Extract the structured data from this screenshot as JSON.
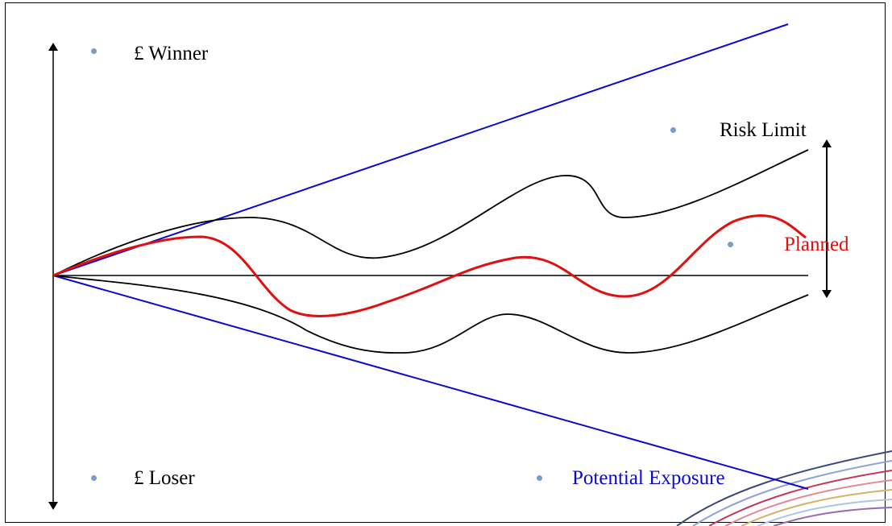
{
  "labels": {
    "winner": "£ Winner",
    "loser": "£ Loser",
    "risk_limit": "Risk Limit",
    "planned": "Planned",
    "potential_exposure": "Potential Exposure"
  },
  "colors": {
    "exposure": "#0a0ad0",
    "planned": "#e01010",
    "risk_limit": "#000000",
    "axis": "#000000",
    "bullet": "#7a9ccb"
  },
  "icons": {
    "vertical_axis": "double-arrow-vertical",
    "risk_range": "double-arrow-vertical",
    "bullet": "bullet-dot",
    "swoosh": "decorative-swoosh"
  }
}
